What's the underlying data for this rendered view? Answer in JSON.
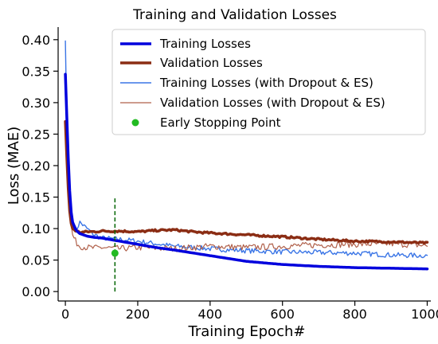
{
  "chart_data": {
    "type": "line",
    "title": "Training and Validation Losses",
    "xlabel": "Training Epoch#",
    "ylabel": "Loss (MAE)",
    "xlim": [
      -20,
      1010
    ],
    "ylim": [
      -0.015,
      0.42
    ],
    "xticks": [
      0,
      200,
      400,
      600,
      800,
      1000
    ],
    "yticks": [
      0.0,
      0.05,
      0.1,
      0.15,
      0.2,
      0.25,
      0.3,
      0.35,
      0.4
    ],
    "ytick_labels": [
      "0.00",
      "0.05",
      "0.10",
      "0.15",
      "0.20",
      "0.25",
      "0.30",
      "0.35",
      "0.40"
    ],
    "grid": false,
    "legend_position": "top-right",
    "series": [
      {
        "name": "Training Losses",
        "color": "#0000dd",
        "width": 3.5,
        "noise": 0,
        "x": [
          0,
          5,
          10,
          15,
          20,
          30,
          40,
          60,
          80,
          100,
          150,
          200,
          250,
          300,
          400,
          500,
          600,
          700,
          800,
          900,
          1000
        ],
        "y": [
          0.345,
          0.26,
          0.18,
          0.13,
          0.11,
          0.097,
          0.092,
          0.088,
          0.086,
          0.085,
          0.08,
          0.075,
          0.07,
          0.066,
          0.057,
          0.048,
          0.043,
          0.04,
          0.038,
          0.037,
          0.036
        ]
      },
      {
        "name": "Validation Losses",
        "color": "#8b2d14",
        "width": 3.5,
        "noise": 0.0015,
        "x": [
          0,
          5,
          10,
          15,
          20,
          30,
          40,
          60,
          80,
          100,
          150,
          200,
          250,
          300,
          350,
          400,
          500,
          600,
          700,
          800,
          900,
          1000
        ],
        "y": [
          0.27,
          0.2,
          0.14,
          0.11,
          0.1,
          0.096,
          0.094,
          0.095,
          0.095,
          0.096,
          0.096,
          0.095,
          0.097,
          0.098,
          0.095,
          0.093,
          0.09,
          0.087,
          0.083,
          0.08,
          0.079,
          0.077
        ]
      },
      {
        "name": "Training Losses (with Dropout & ES)",
        "color": "#3a75e6",
        "width": 1.4,
        "noise": 0.004,
        "x": [
          0,
          3,
          6,
          10,
          15,
          20,
          30,
          40,
          60,
          80,
          100,
          150,
          200,
          300,
          400,
          500,
          600,
          700,
          800,
          900,
          1000
        ],
        "y": [
          0.398,
          0.3,
          0.2,
          0.14,
          0.12,
          0.105,
          0.098,
          0.11,
          0.1,
          0.09,
          0.085,
          0.083,
          0.08,
          0.072,
          0.068,
          0.065,
          0.063,
          0.062,
          0.061,
          0.058,
          0.057
        ]
      },
      {
        "name": "Validation Losses (with Dropout & ES)",
        "color": "#b0604a",
        "width": 1.2,
        "noise": 0.005,
        "x": [
          0,
          5,
          10,
          15,
          20,
          30,
          40,
          60,
          80,
          100,
          150,
          200,
          300,
          400,
          500,
          600,
          700,
          800,
          900,
          1000
        ],
        "y": [
          0.27,
          0.2,
          0.14,
          0.11,
          0.09,
          0.078,
          0.072,
          0.07,
          0.069,
          0.07,
          0.068,
          0.07,
          0.068,
          0.072,
          0.07,
          0.072,
          0.074,
          0.075,
          0.076,
          0.073
        ]
      }
    ],
    "early_stopping": {
      "name": "Early Stopping Point",
      "color": "#22bb22",
      "x": 137,
      "y": 0.061,
      "line_color": "#006400",
      "line_y": [
        0.0,
        0.15
      ]
    }
  }
}
